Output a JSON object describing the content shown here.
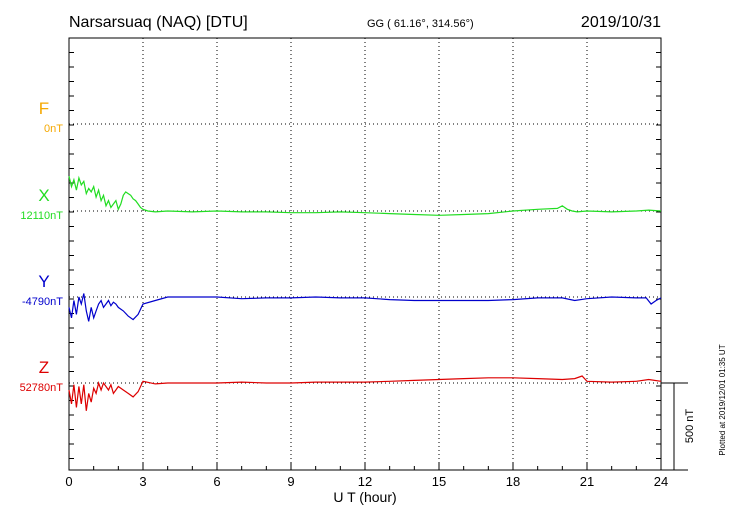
{
  "header": {
    "station": "Narsarsuaq (NAQ)  [DTU]",
    "coords": "GG ( 61.16°, 314.56°)",
    "date": "2019/10/31"
  },
  "side_note": "Plotted at 2019/12/01 01:35 UT",
  "scale_bar": {
    "label": "500 nT",
    "value_nT": 500
  },
  "chart_data": {
    "type": "line",
    "title": "Narsarsuaq (NAQ)  [DTU]",
    "xlabel": "U T (hour)",
    "ylabel": "",
    "xlim": [
      0,
      24
    ],
    "x_ticks": [
      "0",
      "3",
      "6",
      "9",
      "12",
      "15",
      "18",
      "21",
      "24"
    ],
    "grid": true,
    "series": [
      {
        "name": "F",
        "baseline": "0nT",
        "color": "#f5a800",
        "x": [],
        "y": []
      },
      {
        "name": "X",
        "baseline": "12110nT",
        "color": "#22dd22",
        "x": [
          0,
          0.1,
          0.2,
          0.3,
          0.4,
          0.5,
          0.6,
          0.7,
          0.8,
          0.9,
          1.0,
          1.1,
          1.2,
          1.3,
          1.4,
          1.5,
          1.6,
          1.7,
          1.8,
          1.9,
          2.0,
          2.1,
          2.2,
          2.3,
          2.4,
          2.5,
          2.6,
          2.7,
          2.8,
          2.9,
          3.0,
          3.2,
          3.5,
          4,
          5,
          6,
          7,
          8,
          9,
          10,
          11,
          12,
          13,
          14,
          15,
          16,
          17,
          18,
          19,
          19.8,
          20.0,
          20.2,
          20.4,
          20.6,
          21,
          22,
          23,
          23.5,
          24
        ],
        "y": [
          200,
          140,
          180,
          120,
          190,
          150,
          170,
          100,
          130,
          110,
          140,
          80,
          120,
          60,
          90,
          30,
          60,
          20,
          40,
          60,
          10,
          40,
          90,
          110,
          100,
          90,
          70,
          60,
          40,
          20,
          10,
          0,
          -5,
          0,
          -5,
          0,
          -5,
          -5,
          -10,
          -10,
          -5,
          -10,
          -15,
          -20,
          -25,
          -20,
          -15,
          0,
          10,
          15,
          30,
          10,
          0,
          -5,
          0,
          -5,
          0,
          5,
          0
        ]
      },
      {
        "name": "Y",
        "baseline": "-4790nT",
        "color": "#0000cc",
        "x": [
          0,
          0.1,
          0.2,
          0.3,
          0.4,
          0.5,
          0.6,
          0.7,
          0.8,
          0.9,
          1.0,
          1.1,
          1.2,
          1.3,
          1.4,
          1.5,
          1.6,
          1.7,
          1.8,
          1.9,
          2.0,
          2.2,
          2.4,
          2.6,
          2.8,
          3.0,
          3.5,
          4,
          5,
          6,
          7,
          8,
          9,
          10,
          11,
          12,
          13,
          14,
          15,
          16,
          17,
          18,
          19,
          20,
          20.5,
          21,
          22,
          23,
          23.4,
          23.6,
          23.8,
          24
        ],
        "y": [
          -60,
          -120,
          -20,
          -100,
          0,
          -40,
          20,
          -80,
          -140,
          -60,
          -120,
          -80,
          -40,
          -20,
          -60,
          -40,
          -20,
          -50,
          -30,
          -40,
          -60,
          -80,
          -110,
          -130,
          -100,
          -40,
          -20,
          0,
          0,
          0,
          -10,
          -5,
          -5,
          0,
          -5,
          -5,
          -15,
          -20,
          -20,
          -20,
          -20,
          -15,
          -5,
          -5,
          -20,
          -10,
          0,
          -5,
          -5,
          -40,
          -20,
          -5
        ]
      },
      {
        "name": "Z",
        "baseline": "52780nT",
        "color": "#dd0000",
        "x": [
          0,
          0.1,
          0.2,
          0.3,
          0.4,
          0.5,
          0.6,
          0.7,
          0.8,
          0.9,
          1.0,
          1.1,
          1.2,
          1.3,
          1.4,
          1.5,
          1.6,
          1.7,
          1.8,
          1.9,
          2.0,
          2.2,
          2.4,
          2.6,
          2.8,
          3.0,
          3.5,
          4,
          5,
          6,
          7,
          8,
          9,
          10,
          11,
          12,
          13,
          14,
          15,
          16,
          17,
          18,
          19,
          20,
          20.5,
          20.8,
          21,
          22,
          23,
          23.5,
          24
        ],
        "y": [
          -40,
          -120,
          -10,
          -140,
          -20,
          -120,
          -10,
          -160,
          -60,
          -110,
          -30,
          -60,
          0,
          -40,
          0,
          -20,
          -40,
          -10,
          -60,
          -40,
          -20,
          -40,
          -60,
          -80,
          -50,
          10,
          -5,
          0,
          0,
          0,
          5,
          0,
          0,
          5,
          5,
          5,
          10,
          15,
          20,
          25,
          30,
          30,
          25,
          20,
          25,
          40,
          10,
          5,
          10,
          20,
          10
        ]
      }
    ],
    "scale_nT_per_interval": 500
  }
}
